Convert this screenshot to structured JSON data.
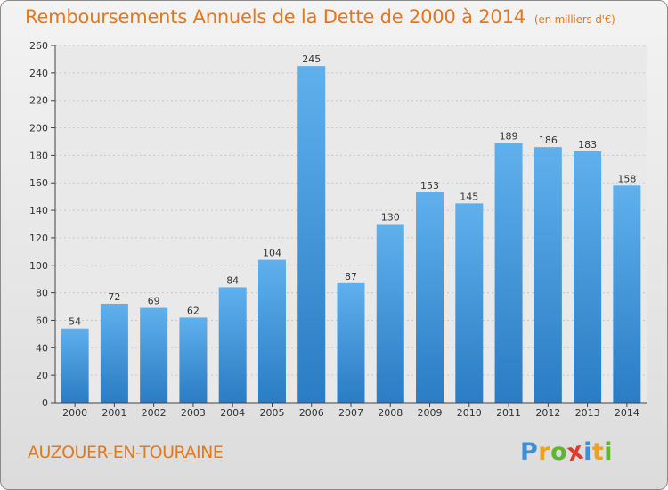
{
  "chart_data": {
    "type": "bar",
    "title": "Remboursements Annuels de la Dette de 2000 à 2014",
    "subtitle": "(en milliers d'€)",
    "categories": [
      "2000",
      "2001",
      "2002",
      "2003",
      "2004",
      "2005",
      "2006",
      "2007",
      "2008",
      "2009",
      "2010",
      "2011",
      "2012",
      "2013",
      "2014"
    ],
    "values": [
      54,
      72,
      69,
      62,
      84,
      104,
      245,
      87,
      130,
      153,
      145,
      189,
      186,
      183,
      158
    ],
    "ylim": [
      0,
      260
    ],
    "yticks": [
      0,
      20,
      40,
      60,
      80,
      100,
      120,
      140,
      160,
      180,
      200,
      220,
      240,
      260
    ],
    "xlabel": "",
    "ylabel": "",
    "grid": true,
    "bar_color": "#3a8fd8"
  },
  "footer": {
    "commune": "AUZOUER-EN-TOURAINE",
    "brand_letters": [
      "P",
      "r",
      "o",
      "x",
      "i",
      "t",
      "i"
    ],
    "brand_colors": [
      "#3d8fd6",
      "#f0a020",
      "#5cb82e",
      "#e03a2a",
      "#3d8fd6",
      "#f0a020",
      "#5cb82e"
    ]
  }
}
